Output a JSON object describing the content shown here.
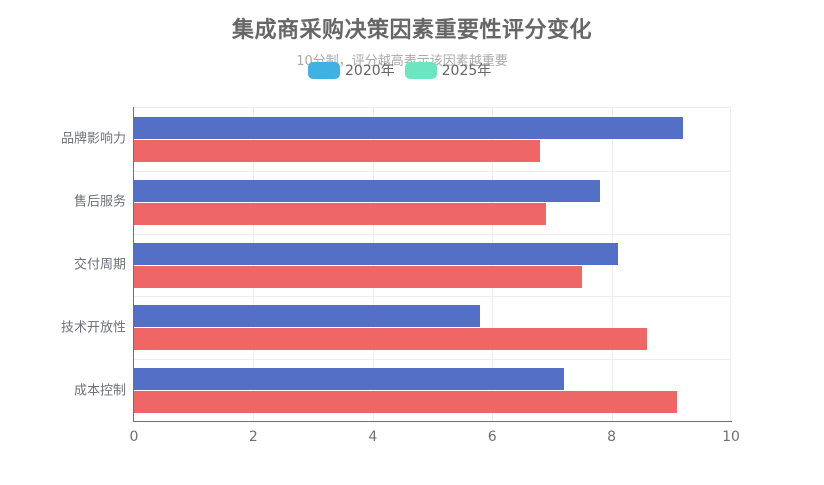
{
  "header": {
    "title": "集成商采购决策因素重要性评分变化",
    "subtitle": "10分制，评分越高表示该因素越重要"
  },
  "legend": [
    {
      "label": "2020年",
      "color": "#3fb1e3"
    },
    {
      "label": "2025年",
      "color": "#6be6c1"
    }
  ],
  "bar_colors": {
    "2020年": "#5470c6",
    "2025年": "#ee6666"
  },
  "chart_data": {
    "type": "bar",
    "orientation": "horizontal",
    "title": "集成商采购决策因素重要性评分变化",
    "subtitle": "10分制，评分越高表示该因素越重要",
    "categories": [
      "品牌影响力",
      "售后服务",
      "交付周期",
      "技术开放性",
      "成本控制"
    ],
    "series": [
      {
        "name": "2020年",
        "values": [
          9.2,
          7.8,
          8.1,
          5.8,
          7.2
        ]
      },
      {
        "name": "2025年",
        "values": [
          6.8,
          6.9,
          7.5,
          8.6,
          9.1
        ]
      }
    ],
    "xlabel": "",
    "ylabel": "",
    "xlim": [
      0,
      10
    ],
    "x_ticks": [
      "0",
      "2",
      "4",
      "6",
      "8",
      "10"
    ],
    "grid": true,
    "legend_position": "top-center"
  }
}
